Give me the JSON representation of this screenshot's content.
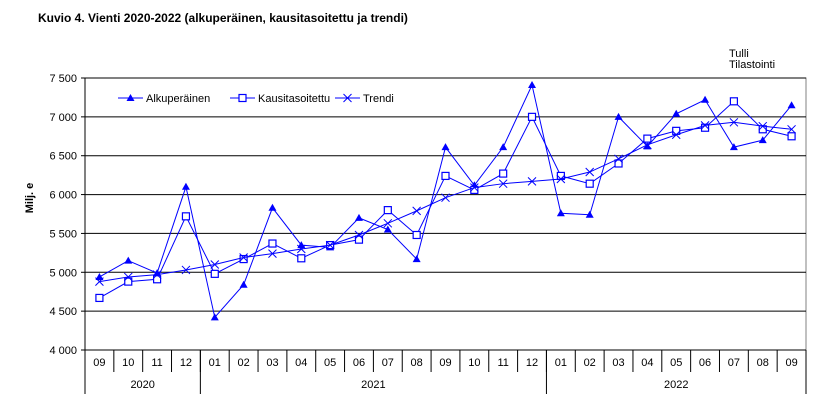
{
  "title": "Kuvio  4. Vienti 2020-2022 (alkuperäinen, kausitasoitettu ja trendi)",
  "source": [
    "Tulli",
    "Tilastointi"
  ],
  "chart_data": {
    "type": "line",
    "title": "Kuvio  4. Vienti 2020-2022 (alkuperäinen, kausitasoitettu ja trendi)",
    "ylabel": "Milj. e",
    "xlabel": "",
    "ylim": [
      4000,
      7500
    ],
    "yticks": [
      4000,
      4500,
      5000,
      5500,
      6000,
      6500,
      7000,
      7500
    ],
    "ytick_labels": [
      "4 000",
      "4 500",
      "5 000",
      "5 500",
      "6 000",
      "6 500",
      "7 000",
      "7 500"
    ],
    "grid": true,
    "legend_position": "top-left",
    "categories": [
      "09",
      "10",
      "11",
      "12",
      "01",
      "02",
      "03",
      "04",
      "05",
      "06",
      "07",
      "08",
      "09",
      "10",
      "11",
      "12",
      "01",
      "02",
      "03",
      "04",
      "05",
      "06",
      "07",
      "08",
      "09"
    ],
    "year_groups": [
      {
        "label": "2020",
        "count": 4
      },
      {
        "label": "2021",
        "count": 12
      },
      {
        "label": "2022",
        "count": 9
      }
    ],
    "color": "#0000ff",
    "series": [
      {
        "name": "Alkuperäinen",
        "marker": "triangle",
        "values": [
          4940,
          5150,
          4990,
          6100,
          4420,
          4840,
          5830,
          5350,
          5320,
          5700,
          5550,
          5170,
          6610,
          6120,
          6610,
          7410,
          5760,
          5740,
          7000,
          6620,
          7040,
          7220,
          6610,
          6700,
          7150
        ]
      },
      {
        "name": "Kausitasoitettu",
        "marker": "square",
        "values": [
          4670,
          4880,
          4910,
          5720,
          4980,
          5170,
          5370,
          5180,
          5350,
          5420,
          5800,
          5480,
          6240,
          6060,
          6270,
          7000,
          6240,
          6140,
          6400,
          6720,
          6820,
          6860,
          7200,
          6840,
          6750
        ]
      },
      {
        "name": "Trendi",
        "marker": "x",
        "values": [
          4880,
          4940,
          4970,
          5030,
          5100,
          5190,
          5240,
          5300,
          5350,
          5480,
          5630,
          5790,
          5960,
          6090,
          6140,
          6170,
          6200,
          6290,
          6460,
          6640,
          6770,
          6890,
          6930,
          6880,
          6840
        ]
      }
    ]
  }
}
